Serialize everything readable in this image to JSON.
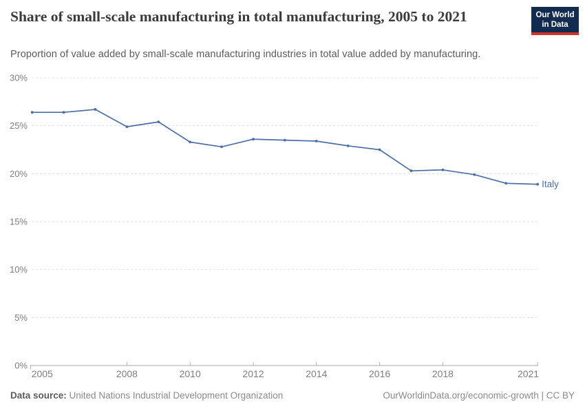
{
  "header": {
    "title": "Share of small-scale manufacturing in total manufacturing, 2005 to 2021",
    "subtitle": "Proportion of value added by small-scale manufacturing industries in total value added by manufacturing.",
    "logo": {
      "line1": "Our World",
      "line2": "in Data",
      "bg_color": "#122b4e",
      "bar_color": "#d0342c"
    }
  },
  "chart_data": {
    "type": "line",
    "title": "Share of small-scale manufacturing in total manufacturing, 2005 to 2021",
    "xlabel": "",
    "ylabel": "",
    "x": [
      2005,
      2006,
      2007,
      2008,
      2009,
      2010,
      2011,
      2012,
      2013,
      2014,
      2015,
      2016,
      2017,
      2018,
      2019,
      2020,
      2021
    ],
    "series": [
      {
        "name": "Italy",
        "color": "#4c6ea8",
        "values": [
          26.4,
          26.4,
          26.7,
          24.9,
          25.4,
          23.3,
          22.8,
          23.6,
          23.5,
          23.4,
          22.9,
          22.5,
          20.3,
          20.4,
          19.9,
          19.0,
          18.9
        ]
      }
    ],
    "xlim": [
      2005,
      2021
    ],
    "ylim": [
      0,
      30
    ],
    "y_ticks": [
      0,
      5,
      10,
      15,
      20,
      25,
      30
    ],
    "y_tick_suffix": "%",
    "x_ticks": [
      2005,
      2008,
      2010,
      2012,
      2014,
      2016,
      2018,
      2021
    ],
    "grid": "horizontal-dashed",
    "legend_position": "end-of-line",
    "colors": {
      "gridline": "#e1e1e1",
      "axis": "#a8a8a8",
      "tick": "#b3b3b3",
      "tick_label": "#7e7e7e"
    }
  },
  "footer": {
    "source_label": "Data source:",
    "source_value": "United Nations Industrial Development Organization",
    "right_text": "OurWorldinData.org/economic-growth | CC BY"
  }
}
